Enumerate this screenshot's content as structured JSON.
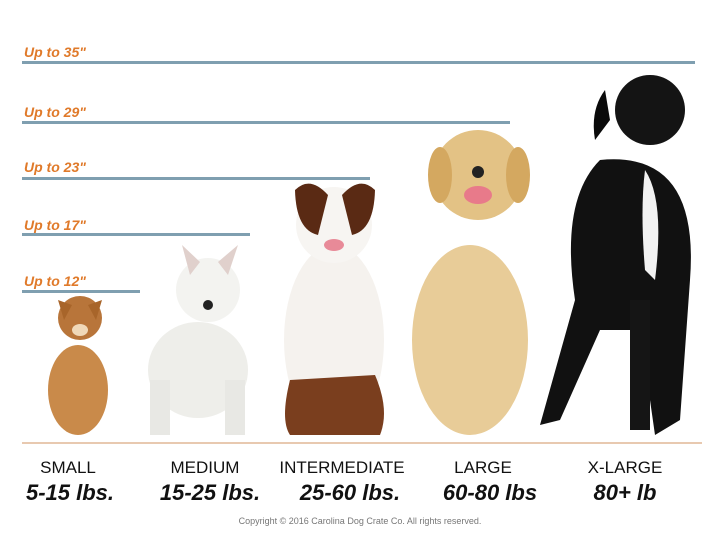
{
  "height_markers": [
    {
      "label": "Up to 35\"",
      "value_in": 35
    },
    {
      "label": "Up to 29\"",
      "value_in": 29
    },
    {
      "label": "Up to 23\"",
      "value_in": 23
    },
    {
      "label": "Up to 17\"",
      "value_in": 17
    },
    {
      "label": "Up to 12\"",
      "value_in": 12
    }
  ],
  "categories": [
    {
      "name": "SMALL",
      "weight": "5-15 lbs."
    },
    {
      "name": "MEDIUM",
      "weight": "15-25 lbs."
    },
    {
      "name": "INTERMEDIATE",
      "weight": "25-60 lbs."
    },
    {
      "name": "LARGE",
      "weight": "60-80 lbs"
    },
    {
      "name": "X-LARGE",
      "weight": "80+ lb"
    }
  ],
  "copyright": "Copyright © 2016 Carolina Dog Crate Co. All rights reserved.",
  "colors": {
    "label": "#e07a2a",
    "line": "#7f9fb0",
    "text": "#111111"
  }
}
